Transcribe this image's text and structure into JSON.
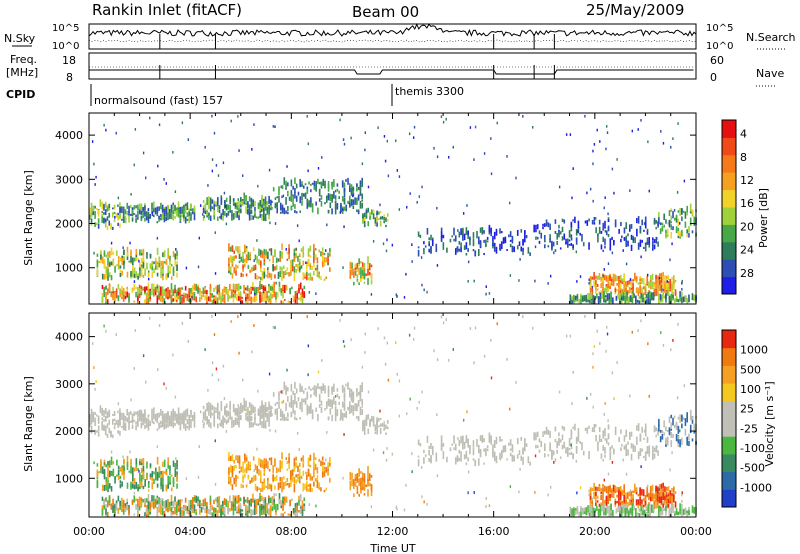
{
  "header": {
    "station": "Rankin Inlet (fitACF)",
    "beam": "Beam 00",
    "date": "25/May/2009"
  },
  "noise_panel": {
    "left_label": "N.Sky",
    "right_label": "N.Search",
    "left_ticks": [
      "10^5",
      "10^0"
    ],
    "right_ticks": [
      "10^5",
      "10^0"
    ]
  },
  "freq_panel": {
    "left_label_1": "Freq.",
    "left_label_2": "[MHz]",
    "right_label": "Nave",
    "left_ticks": [
      "18",
      "8"
    ],
    "right_ticks": [
      "60",
      "0"
    ]
  },
  "cpid_panel": {
    "label": "CPID",
    "programs": [
      {
        "name": "normalsound (fast) 157",
        "start_hour": 0
      },
      {
        "name": "themis 3300",
        "start_hour": 12
      }
    ]
  },
  "chart_data": [
    {
      "type": "heatmap",
      "name": "power",
      "ylabel": "Slant Range [km]",
      "xlabel": "Time UT",
      "x_ticks": [
        "00:00",
        "04:00",
        "08:00",
        "12:00",
        "16:00",
        "20:00",
        "00:00"
      ],
      "xlim_hours": [
        0,
        24
      ],
      "ylim_km": [
        180,
        4500
      ],
      "y_ticks": [
        1000,
        2000,
        3000,
        4000
      ],
      "colorbar": {
        "label": "Power [dB]",
        "ticks": [
          "4",
          "8",
          "12",
          "16",
          "20",
          "24",
          "28"
        ],
        "colors": [
          "#1e1ee6",
          "#2d4fb4",
          "#2e7d5a",
          "#46a846",
          "#9fd23a",
          "#f0d22a",
          "#f5a020",
          "#f57a1a",
          "#f04a18",
          "#e61010"
        ]
      }
    },
    {
      "type": "heatmap",
      "name": "velocity",
      "ylabel": "Slant Range [km]",
      "xlabel": "Time UT",
      "x_ticks": [
        "00:00",
        "04:00",
        "08:00",
        "12:00",
        "16:00",
        "20:00",
        "00:00"
      ],
      "xlim_hours": [
        0,
        24
      ],
      "ylim_km": [
        180,
        4500
      ],
      "y_ticks": [
        1000,
        2000,
        3000,
        4000
      ],
      "colorbar": {
        "label": "Velocity [m s⁻¹]",
        "ticks": [
          "1000",
          "500",
          "100",
          "25",
          "-25",
          "-100",
          "-500",
          "-1000"
        ],
        "colors": [
          "#2040c8",
          "#2e6aa8",
          "#3a8a60",
          "#4ab840",
          "#c0c0b8",
          "#c0c0b8",
          "#f5c820",
          "#f5a020",
          "#f07a10",
          "#e82810"
        ]
      }
    }
  ],
  "colors": {
    "background": "#ffffff",
    "ground_scatter": "#bebeb4",
    "axis": "#000000"
  }
}
